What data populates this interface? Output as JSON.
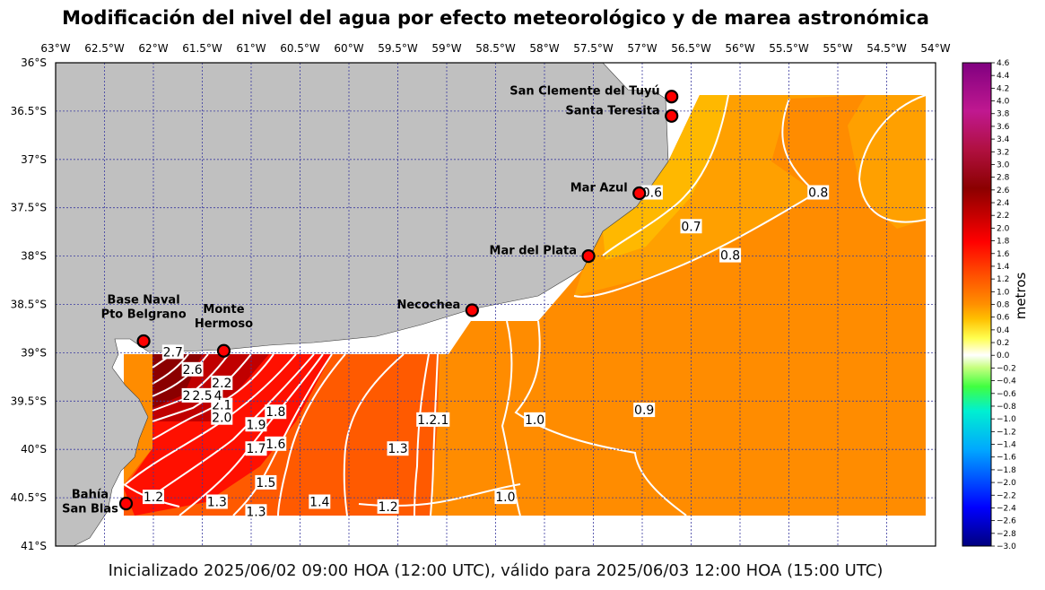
{
  "title": "Modificación del nivel del agua por efecto meteorológico y de marea astronómica",
  "footer": "Inicializado 2025/06/02 09:00 HOA (12:00 UTC), válido para 2025/06/03 12:00 HOA (15:00 UTC)",
  "colorbar": {
    "label": "metros",
    "min": -3.0,
    "max": 4.6,
    "ticks": [
      "4.6",
      "4.4",
      "4.2",
      "4.0",
      "3.8",
      "3.6",
      "3.4",
      "3.2",
      "3.0",
      "2.8",
      "2.6",
      "2.4",
      "2.2",
      "2.0",
      "1.8",
      "1.6",
      "1.4",
      "1.2",
      "1.0",
      "0.8",
      "0.6",
      "0.4",
      "0.2",
      "0.0",
      "−0.2",
      "−0.4",
      "−0.6",
      "−0.8",
      "−1.0",
      "−1.2",
      "−1.4",
      "−1.6",
      "−1.8",
      "−2.0",
      "−2.2",
      "−2.4",
      "−2.6",
      "−2.8",
      "−3.0"
    ]
  },
  "axes": {
    "lon_labels": [
      "63°W",
      "62.5°W",
      "62°W",
      "61.5°W",
      "61°W",
      "60.5°W",
      "60°W",
      "59.5°W",
      "59°W",
      "58.5°W",
      "58°W",
      "57.5°W",
      "57°W",
      "56.5°W",
      "56°W",
      "55.5°W",
      "55°W",
      "54.5°W",
      "54°W"
    ],
    "lat_labels": [
      "36°S",
      "36.5°S",
      "37°S",
      "37.5°S",
      "38°S",
      "38.5°S",
      "39°S",
      "39.5°S",
      "40°S",
      "40.5°S",
      "41°S"
    ],
    "lon_range": [
      -63,
      -54
    ],
    "lat_range": [
      -41,
      -36
    ]
  },
  "cities": [
    {
      "name": "San Clemente del Tuyú",
      "lines": [
        "San Clemente del Tuyú"
      ],
      "lon": -56.7,
      "lat": -36.35
    },
    {
      "name": "Santa Teresita",
      "lines": [
        "Santa Teresita"
      ],
      "lon": -56.7,
      "lat": -36.55
    },
    {
      "name": "Mar Azul",
      "lines": [
        "Mar Azul"
      ],
      "lon": -57.03,
      "lat": -37.35
    },
    {
      "name": "Mar del Plata",
      "lines": [
        "Mar del Plata"
      ],
      "lon": -57.55,
      "lat": -38.0
    },
    {
      "name": "Necochea",
      "lines": [
        "Necochea"
      ],
      "lon": -58.74,
      "lat": -38.56
    },
    {
      "name": "Base Naval Pto Belgrano",
      "lines": [
        "Base Naval",
        "Pto Belgrano"
      ],
      "lon": -62.1,
      "lat": -38.88
    },
    {
      "name": "Monte Hermoso",
      "lines": [
        "Monte",
        "Hermoso"
      ],
      "lon": -61.28,
      "lat": -38.98
    },
    {
      "name": "Bahía San Blas",
      "lines": [
        "Bahía",
        "San Blas"
      ],
      "lon": -62.28,
      "lat": -40.56
    }
  ],
  "contour_labels": [
    {
      "text": "0.6",
      "lon": -56.9,
      "lat": -37.35
    },
    {
      "text": "0.7",
      "lon": -56.5,
      "lat": -37.7
    },
    {
      "text": "0.8",
      "lon": -56.1,
      "lat": -38.0
    },
    {
      "text": "0.8",
      "lon": -55.2,
      "lat": -37.35
    },
    {
      "text": "0.9",
      "lon": -56.98,
      "lat": -39.6
    },
    {
      "text": "1.0",
      "lon": -58.1,
      "lat": -39.7
    },
    {
      "text": "1.0",
      "lon": -58.4,
      "lat": -40.5
    },
    {
      "text": "1.1",
      "lon": -59.08,
      "lat": -39.7
    },
    {
      "text": "1.2",
      "lon": -59.2,
      "lat": -39.7
    },
    {
      "text": "1.2",
      "lon": -59.6,
      "lat": -40.6
    },
    {
      "text": "1.2",
      "lon": -62.0,
      "lat": -40.5
    },
    {
      "text": "1.3",
      "lon": -59.5,
      "lat": -40.0
    },
    {
      "text": "1.3",
      "lon": -61.35,
      "lat": -40.55
    },
    {
      "text": "1.3",
      "lon": -60.95,
      "lat": -40.65
    },
    {
      "text": "1.4",
      "lon": -60.3,
      "lat": -40.55
    },
    {
      "text": "1.5",
      "lon": -60.85,
      "lat": -40.35
    },
    {
      "text": "1.6",
      "lon": -60.75,
      "lat": -39.95
    },
    {
      "text": "1.7",
      "lon": -60.95,
      "lat": -40.0
    },
    {
      "text": "1.8",
      "lon": -60.75,
      "lat": -39.62
    },
    {
      "text": "1.9",
      "lon": -60.95,
      "lat": -39.75
    },
    {
      "text": "2.0",
      "lon": -61.3,
      "lat": -39.68
    },
    {
      "text": "2.1",
      "lon": -61.3,
      "lat": -39.55
    },
    {
      "text": "2.2",
      "lon": -61.3,
      "lat": -39.32
    },
    {
      "text": "2.3",
      "lon": -61.6,
      "lat": -39.45
    },
    {
      "text": "2.4",
      "lon": -61.4,
      "lat": -39.45
    },
    {
      "text": "2.5",
      "lon": -61.5,
      "lat": -39.45
    },
    {
      "text": "2.6",
      "lon": -61.6,
      "lat": -39.18
    },
    {
      "text": "2.7",
      "lon": -61.8,
      "lat": -39.0
    }
  ]
}
